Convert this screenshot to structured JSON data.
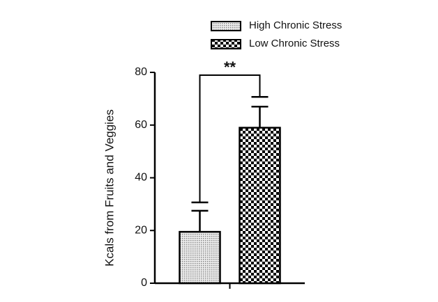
{
  "chart_data": {
    "type": "bar",
    "categories": [
      null
    ],
    "series": [
      {
        "name": "High Chronic Stress",
        "color": "#8a8a8a",
        "pattern": "dots",
        "values": [
          19.5
        ],
        "errors": [
          8
        ]
      },
      {
        "name": "Low Chronic Stress",
        "color": "#000000",
        "pattern": "checker",
        "values": [
          59
        ],
        "errors": [
          8
        ]
      }
    ],
    "y_label": "Kcals from Fruits and Veggies",
    "annotation": "**",
    "ylim": [
      0,
      80
    ],
    "yticks": [
      0,
      20,
      40,
      60,
      80
    ],
    "grid": false
  }
}
